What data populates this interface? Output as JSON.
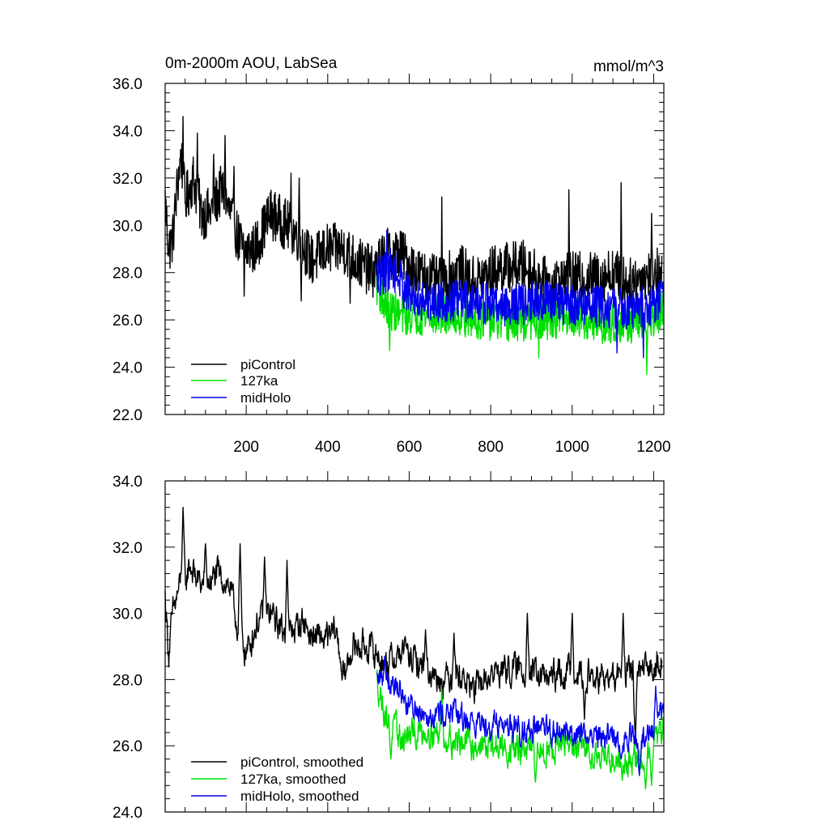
{
  "colors": {
    "piControl": "#000000",
    "127ka": "#00e000",
    "midHolo": "#0000ee",
    "axis": "#000000"
  },
  "chart_data": [
    {
      "type": "line",
      "title": "0m-2000m AOU, LabSea",
      "units": "mmol/m^3",
      "xlim": [
        1,
        1225
      ],
      "ylim": [
        22,
        36
      ],
      "xticks": [
        200,
        400,
        600,
        800,
        1000,
        1200
      ],
      "xtick_labels": [
        "200",
        "400",
        "600",
        "800",
        "1000",
        "1200"
      ],
      "yticks": [
        22,
        24,
        26,
        28,
        30,
        32,
        34,
        36
      ],
      "ytick_labels": [
        "22.0",
        "24.0",
        "26.0",
        "28.0",
        "30.0",
        "32.0",
        "34.0",
        "36.0"
      ],
      "legend_position": "bottom-left",
      "series": [
        {
          "key": "piControl",
          "name": "piControl",
          "x_start": 1,
          "x_end": 1220,
          "anchors": [
            [
              1,
              31.0
            ],
            [
              10,
              29.0
            ],
            [
              20,
              29.5
            ],
            [
              30,
              31.5
            ],
            [
              40,
              33.0
            ],
            [
              50,
              31.0
            ],
            [
              70,
              32.0
            ],
            [
              90,
              30.5
            ],
            [
              110,
              30.5
            ],
            [
              140,
              31.5
            ],
            [
              160,
              30.5
            ],
            [
              190,
              29.0
            ],
            [
              220,
              29.0
            ],
            [
              260,
              30.5
            ],
            [
              300,
              30.0
            ],
            [
              330,
              29.5
            ],
            [
              360,
              28.5
            ],
            [
              400,
              29.0
            ],
            [
              440,
              29.0
            ],
            [
              470,
              28.5
            ],
            [
              510,
              28.0
            ],
            [
              540,
              28.8
            ],
            [
              580,
              28.8
            ],
            [
              620,
              28.0
            ],
            [
              680,
              27.5
            ],
            [
              720,
              28.2
            ],
            [
              760,
              27.6
            ],
            [
              820,
              28.2
            ],
            [
              880,
              28.3
            ],
            [
              940,
              27.5
            ],
            [
              1000,
              27.8
            ],
            [
              1060,
              27.8
            ],
            [
              1100,
              28.0
            ],
            [
              1140,
              27.5
            ],
            [
              1180,
              27.9
            ],
            [
              1220,
              28.0
            ]
          ],
          "amplitude": 1.1,
          "extremes": [
            [
              45,
              34.6
            ],
            [
              80,
              33.9
            ],
            [
              120,
              33.0
            ],
            [
              148,
              33.8
            ],
            [
              170,
              32.5
            ],
            [
              195,
              27.0
            ],
            [
              310,
              32.2
            ],
            [
              330,
              32.0
            ],
            [
              335,
              26.8
            ],
            [
              455,
              26.7
            ],
            [
              530,
              26.5
            ],
            [
              680,
              31.2
            ],
            [
              992,
              31.5
            ],
            [
              1120,
              31.8
            ],
            [
              1195,
              30.5
            ]
          ]
        },
        {
          "key": "127ka",
          "name": "127ka",
          "x_start": 520,
          "x_end": 1225,
          "anchors": [
            [
              520,
              27.5
            ],
            [
              545,
              26.5
            ],
            [
              580,
              26.2
            ],
            [
              650,
              26.2
            ],
            [
              700,
              26.2
            ],
            [
              780,
              26.0
            ],
            [
              850,
              25.9
            ],
            [
              900,
              25.9
            ],
            [
              950,
              26.0
            ],
            [
              1000,
              26.2
            ],
            [
              1060,
              25.8
            ],
            [
              1120,
              25.9
            ],
            [
              1180,
              25.8
            ],
            [
              1225,
              26.5
            ]
          ],
          "amplitude": 0.85,
          "extremes": [
            [
              552,
              24.7
            ],
            [
              918,
              24.4
            ],
            [
              1183,
              23.7
            ]
          ]
        },
        {
          "key": "midHolo",
          "name": "midHolo",
          "x_start": 520,
          "x_end": 1225,
          "anchors": [
            [
              520,
              27.8
            ],
            [
              560,
              28.2
            ],
            [
              600,
              27.0
            ],
            [
              650,
              26.8
            ],
            [
              700,
              26.8
            ],
            [
              760,
              26.8
            ],
            [
              820,
              26.6
            ],
            [
              880,
              26.7
            ],
            [
              940,
              26.8
            ],
            [
              1000,
              26.6
            ],
            [
              1060,
              26.6
            ],
            [
              1120,
              26.5
            ],
            [
              1180,
              26.5
            ],
            [
              1225,
              27.0
            ]
          ],
          "amplitude": 0.9,
          "extremes": [
            [
              545,
              29.8
            ],
            [
              1110,
              24.6
            ],
            [
              1175,
              24.4
            ]
          ]
        }
      ]
    },
    {
      "type": "line",
      "title": "",
      "units": "",
      "xlim": [
        1,
        1225
      ],
      "ylim": [
        24,
        34
      ],
      "xticks": [
        200,
        400,
        600,
        800,
        1000,
        1200
      ],
      "xtick_labels": [
        "",
        "",
        "",
        "",
        "",
        ""
      ],
      "yticks": [
        24,
        26,
        28,
        30,
        32,
        34
      ],
      "ytick_labels": [
        "24.0",
        "26.0",
        "28.0",
        "30.0",
        "32.0",
        "34.0"
      ],
      "legend_position": "bottom-left",
      "series": [
        {
          "key": "piControl",
          "name": "piControl, smoothed",
          "x_start": 1,
          "x_end": 1220,
          "anchors": [
            [
              1,
              30.5
            ],
            [
              10,
              28.8
            ],
            [
              20,
              30.0
            ],
            [
              40,
              31.0
            ],
            [
              50,
              30.8
            ],
            [
              60,
              31.5
            ],
            [
              80,
              31.0
            ],
            [
              100,
              30.8
            ],
            [
              130,
              31.2
            ],
            [
              160,
              30.8
            ],
            [
              180,
              29.5
            ],
            [
              200,
              28.8
            ],
            [
              230,
              29.8
            ],
            [
              260,
              30.0
            ],
            [
              300,
              29.3
            ],
            [
              340,
              29.8
            ],
            [
              360,
              29.3
            ],
            [
              400,
              29.2
            ],
            [
              420,
              29.5
            ],
            [
              440,
              28.0
            ],
            [
              460,
              29.0
            ],
            [
              500,
              29.0
            ],
            [
              540,
              28.5
            ],
            [
              580,
              28.8
            ],
            [
              620,
              28.5
            ],
            [
              680,
              28.0
            ],
            [
              720,
              28.2
            ],
            [
              760,
              27.7
            ],
            [
              820,
              28.3
            ],
            [
              880,
              28.3
            ],
            [
              940,
              28.0
            ],
            [
              1000,
              28.3
            ],
            [
              1060,
              28.0
            ],
            [
              1100,
              28.0
            ],
            [
              1140,
              28.2
            ],
            [
              1180,
              28.2
            ],
            [
              1220,
              28.7
            ]
          ],
          "amplitude": 0.5,
          "extremes": [
            [
              45,
              33.2
            ],
            [
              100,
              32.1
            ],
            [
              185,
              32.1
            ],
            [
              245,
              31.7
            ],
            [
              300,
              31.6
            ],
            [
              590,
              29.3
            ],
            [
              640,
              29.5
            ],
            [
              710,
              29.4
            ],
            [
              890,
              30.0
            ],
            [
              1000,
              30.0
            ],
            [
              1125,
              30.0
            ],
            [
              1030,
              26.8
            ],
            [
              1155,
              26.0
            ]
          ]
        },
        {
          "key": "127ka",
          "name": "127ka, smoothed",
          "x_start": 520,
          "x_end": 1225,
          "anchors": [
            [
              520,
              28.0
            ],
            [
              545,
              26.8
            ],
            [
              580,
              26.2
            ],
            [
              650,
              26.5
            ],
            [
              700,
              26.2
            ],
            [
              780,
              26.0
            ],
            [
              850,
              25.9
            ],
            [
              900,
              25.8
            ],
            [
              950,
              26.0
            ],
            [
              1000,
              26.0
            ],
            [
              1060,
              25.8
            ],
            [
              1120,
              25.5
            ],
            [
              1180,
              25.6
            ],
            [
              1225,
              26.5
            ]
          ],
          "amplitude": 0.5,
          "extremes": [
            [
              555,
              25.6
            ],
            [
              680,
              27.7
            ],
            [
              910,
              24.9
            ],
            [
              1180,
              24.7
            ],
            [
              1195,
              24.8
            ]
          ]
        },
        {
          "key": "midHolo",
          "name": "midHolo, smoothed",
          "x_start": 520,
          "x_end": 1225,
          "anchors": [
            [
              520,
              28.0
            ],
            [
              560,
              28.0
            ],
            [
              600,
              27.2
            ],
            [
              650,
              27.0
            ],
            [
              700,
              27.0
            ],
            [
              760,
              26.7
            ],
            [
              820,
              26.7
            ],
            [
              880,
              26.5
            ],
            [
              940,
              26.4
            ],
            [
              1000,
              26.4
            ],
            [
              1060,
              26.3
            ],
            [
              1120,
              26.2
            ],
            [
              1180,
              26.2
            ],
            [
              1225,
              27.0
            ]
          ],
          "amplitude": 0.45,
          "extremes": [
            [
              540,
              28.7
            ],
            [
              1120,
              25.6
            ],
            [
              1165,
              25.1
            ],
            [
              1205,
              27.8
            ]
          ]
        }
      ]
    }
  ]
}
